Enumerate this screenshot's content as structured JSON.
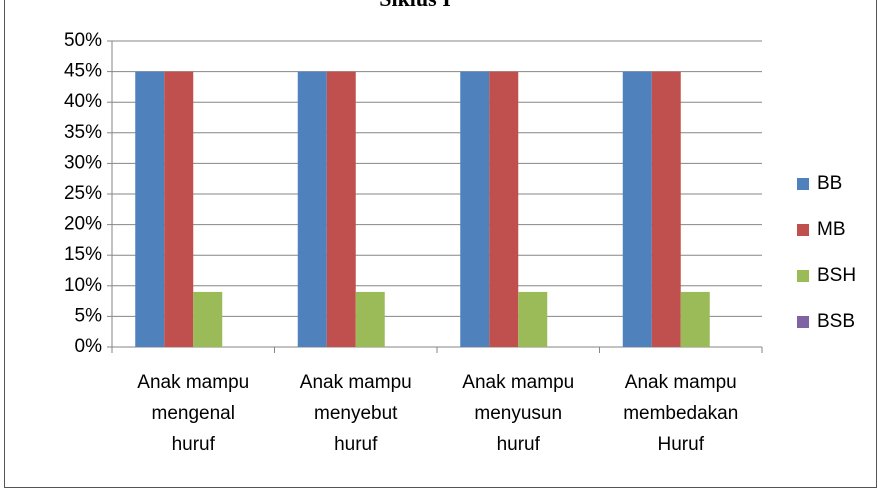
{
  "chart_data": {
    "type": "bar",
    "title": "Siklus I",
    "categories": [
      [
        "Anak mampu",
        "mengenal",
        "huruf"
      ],
      [
        "Anak mampu",
        "menyebut",
        "huruf"
      ],
      [
        "Anak mampu",
        "menyusun",
        "huruf"
      ],
      [
        "Anak mampu",
        "membedakan",
        "Huruf"
      ]
    ],
    "series": [
      {
        "name": "BB",
        "color": "#4f81bd",
        "values": [
          45,
          45,
          45,
          45
        ]
      },
      {
        "name": "MB",
        "color": "#c0504d",
        "values": [
          45,
          45,
          45,
          45
        ]
      },
      {
        "name": "BSH",
        "color": "#9bbb59",
        "values": [
          9,
          9,
          9,
          9
        ]
      },
      {
        "name": "BSB",
        "color": "#8064a2",
        "values": [
          0,
          0,
          0,
          0
        ]
      }
    ],
    "ylim": [
      0,
      50
    ],
    "yticks": [
      {
        "value": 0,
        "label": "0%"
      },
      {
        "value": 5,
        "label": "5%"
      },
      {
        "value": 10,
        "label": "10%"
      },
      {
        "value": 15,
        "label": "15%"
      },
      {
        "value": 20,
        "label": "20%"
      },
      {
        "value": 25,
        "label": "25%"
      },
      {
        "value": 30,
        "label": "30%"
      },
      {
        "value": 35,
        "label": "35%"
      },
      {
        "value": 40,
        "label": "40%"
      },
      {
        "value": 45,
        "label": "45%"
      },
      {
        "value": 50,
        "label": "50%"
      }
    ],
    "grid": true,
    "legend": "right"
  }
}
